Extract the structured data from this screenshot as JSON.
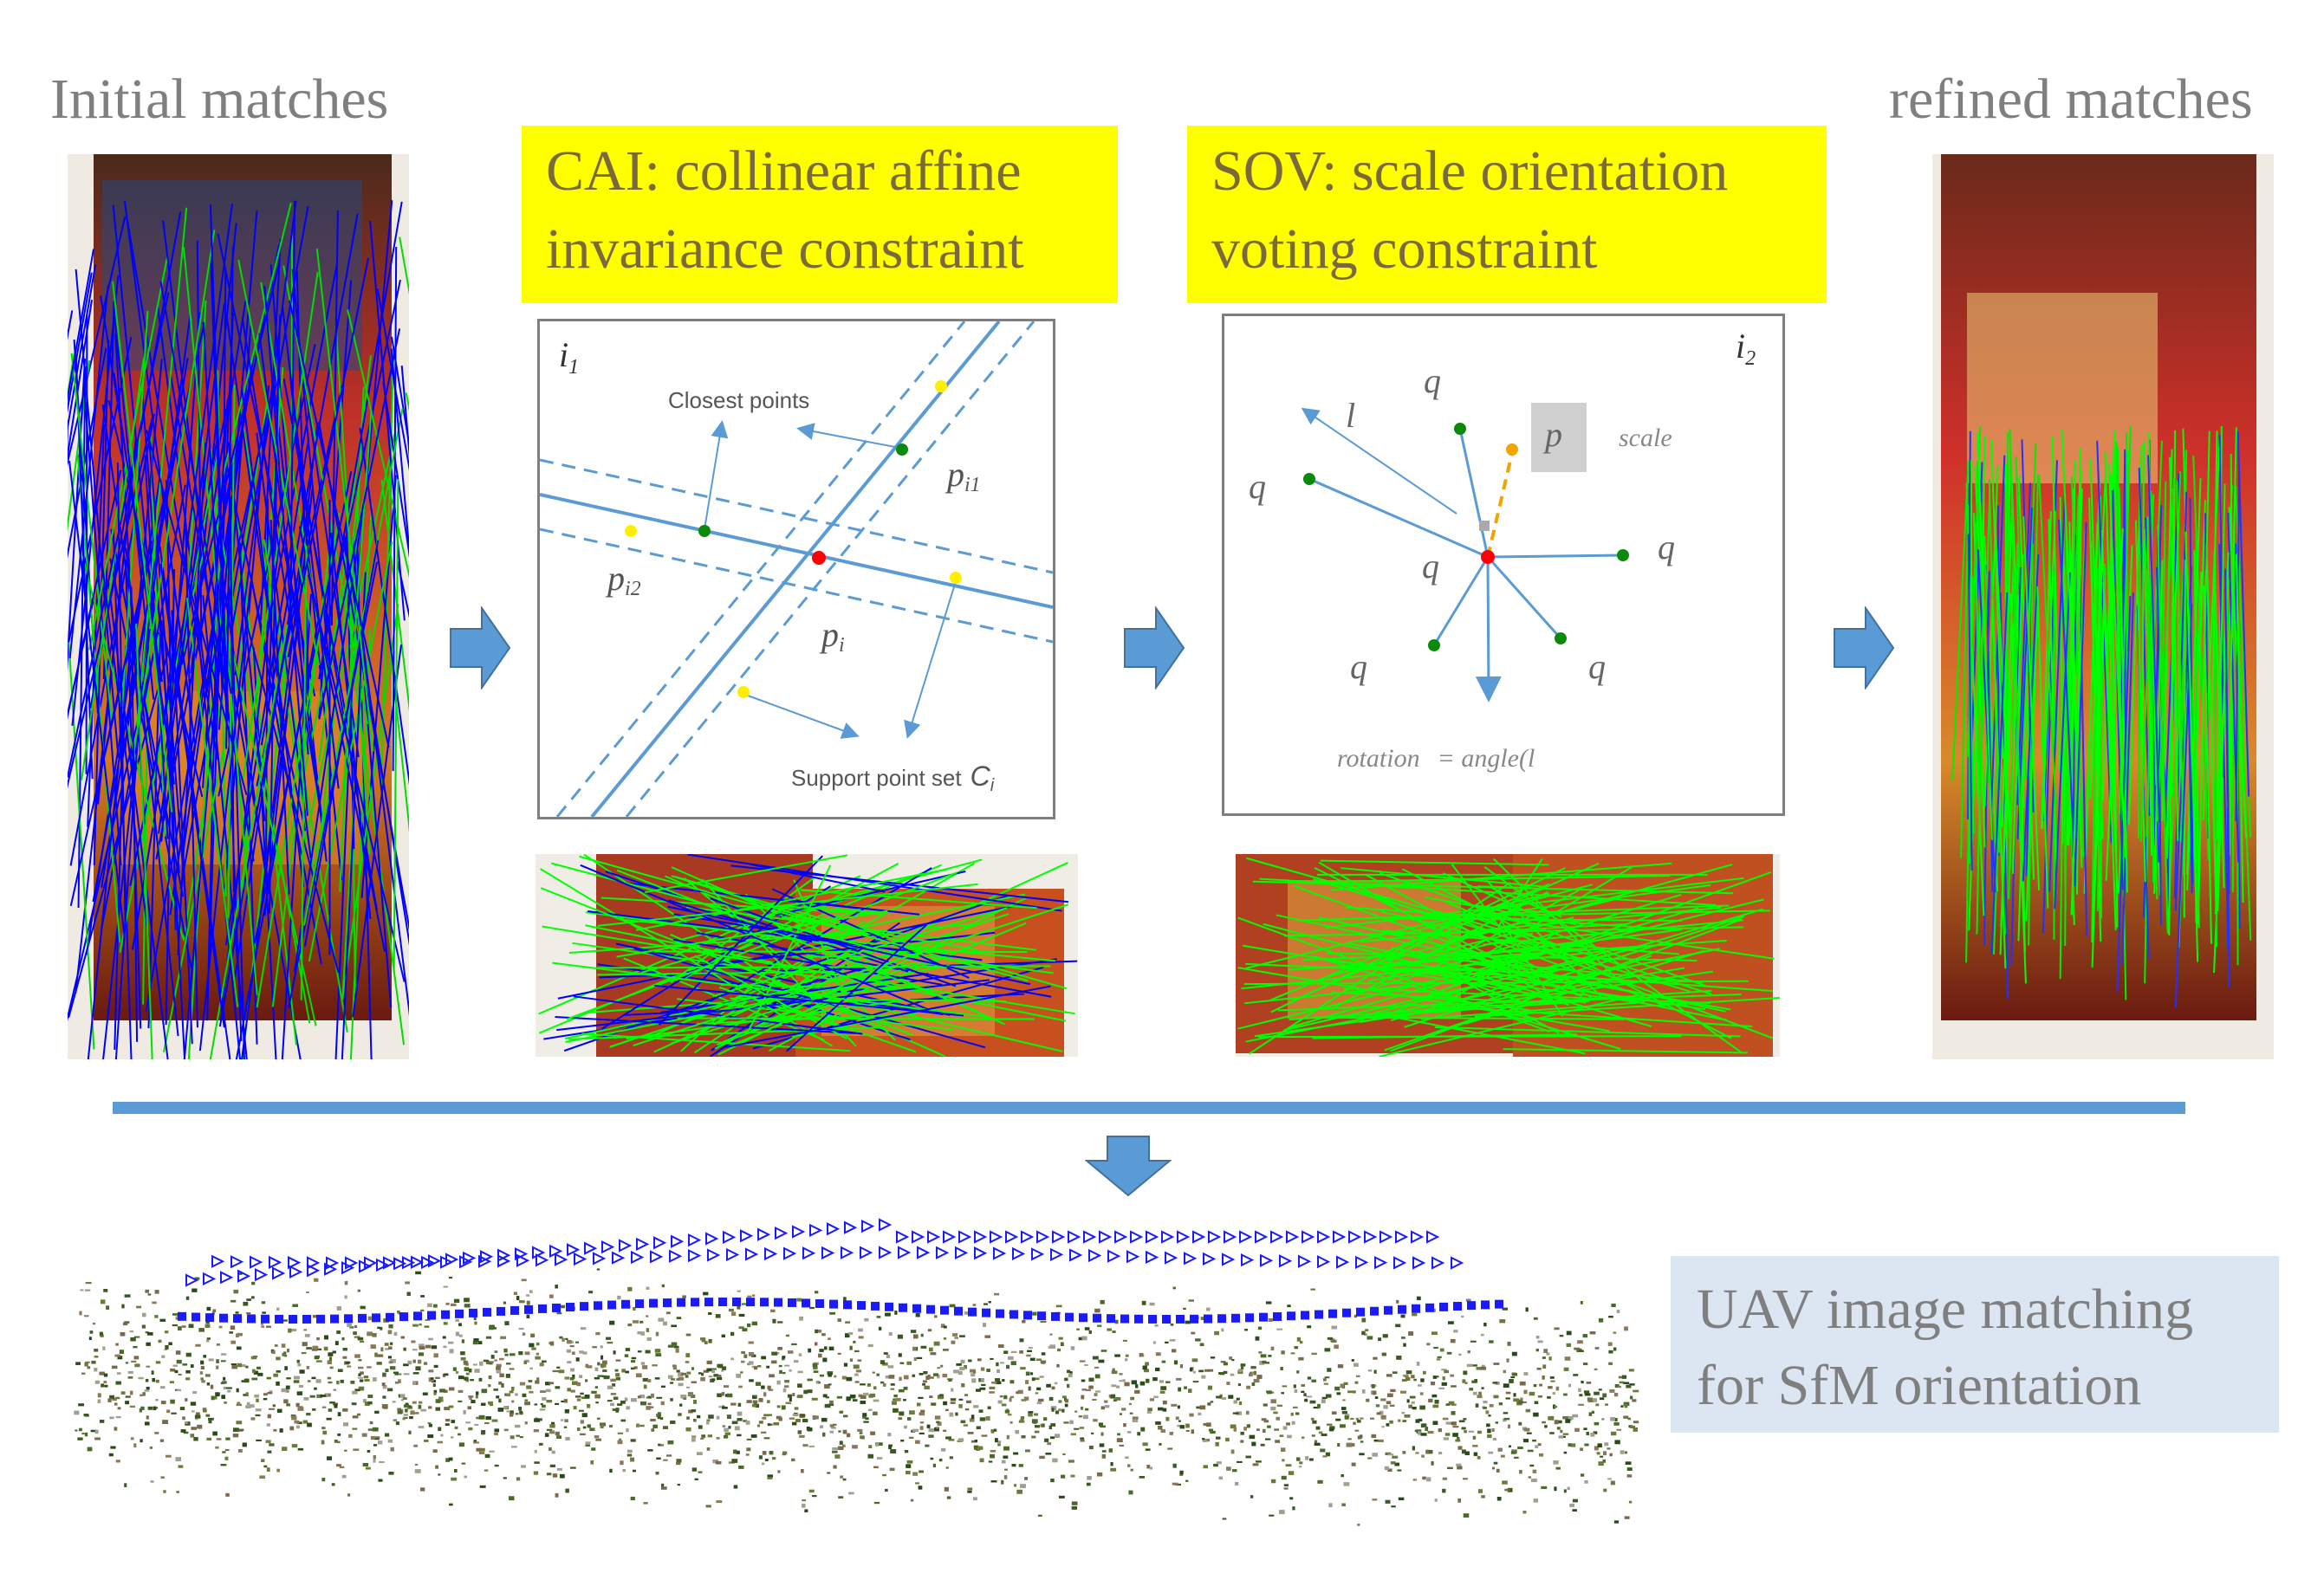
{
  "labels": {
    "initial": "Initial matches",
    "refined": "refined matches",
    "cai": "CAI: collinear affine invariance constraint",
    "sov": "SOV: scale orientation voting constraint",
    "uav_line1": "UAV image matching",
    "uav_line2": "for SfM orientation"
  },
  "cai_panel": {
    "corner": "i",
    "corner_sub": "1",
    "closest_points": "Closest points",
    "support": "Support point set",
    "support_sym": "C",
    "support_sub": "i",
    "p_i1": "p",
    "p_i1_sub": "i1",
    "p_i2": "p",
    "p_i2_sub": "i2",
    "p_i": "p",
    "p_i_sub": "i"
  },
  "sov_panel": {
    "corner": "i",
    "corner_sub": "2",
    "scale_label": "scale",
    "rotation_label": "rotation",
    "angle_label": "= angle(l",
    "q": "q",
    "l": "l",
    "p": "p"
  },
  "colors": {
    "blue_line": "#5b9bd5",
    "arrow_fill": "#5b9bd5",
    "arrow_stroke": "#41719c",
    "match_green": "#00ff00",
    "match_blue": "#0000ff",
    "yellow": "#ffff00",
    "uav_bg": "#dce6f2"
  }
}
